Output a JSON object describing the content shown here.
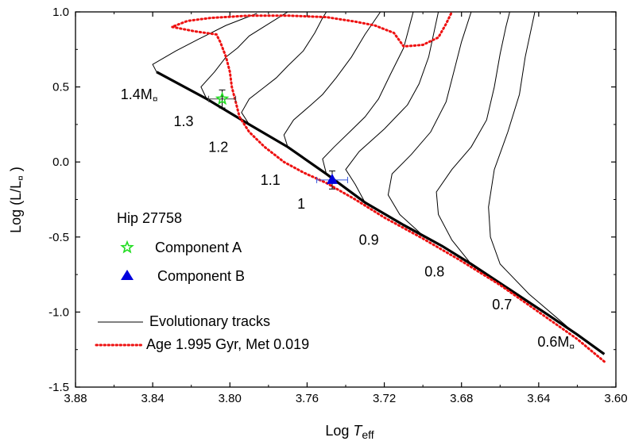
{
  "chart_data": {
    "type": "scatter",
    "xlabel": {
      "prefix": "Log ",
      "italic": "T",
      "sub": "eff"
    },
    "ylabel": {
      "prefix": "Log (L/L",
      "sub": "¤",
      "suffix": " )"
    },
    "xlim": [
      3.88,
      3.6
    ],
    "ylim": [
      -1.5,
      1.0
    ],
    "x_ticks": [
      "3.88",
      "3.84",
      "3.80",
      "3.76",
      "3.72",
      "3.68",
      "3.64",
      "3.60"
    ],
    "y_ticks": [
      "1.0",
      "0.5",
      "0.0",
      "-0.5",
      "-1.0",
      "-1.5"
    ],
    "legend": {
      "title": "Hip 27758",
      "entries": [
        "Component A",
        "Component B"
      ]
    },
    "legend_lines": [
      "Evolutionary tracks",
      "Age 1.995 Gyr, Met 0.019"
    ],
    "colors": {
      "component_a": "#22dd22",
      "component_b": "#0000dd",
      "isochrone": "#ee1111",
      "tracks": "#000000",
      "zams": "#000000",
      "errorbar_a": "#444444",
      "errorbar_b": "#3355dd"
    },
    "stars": [
      {
        "name": "Component A",
        "logT": 3.804,
        "logL": 0.42,
        "errT": 0.007,
        "errL": 0.06,
        "marker": "star"
      },
      {
        "name": "Component B",
        "logT": 3.747,
        "logL": -0.12,
        "errT": 0.008,
        "errL": 0.06,
        "marker": "triangle"
      }
    ],
    "mass_labels": [
      {
        "text": "1.4M",
        "sub": "¤",
        "logT": 3.847,
        "logL": 0.45
      },
      {
        "text": "1.3",
        "logT": 3.824,
        "logL": 0.27
      },
      {
        "text": "1.2",
        "logT": 3.806,
        "logL": 0.1
      },
      {
        "text": "1.1",
        "logT": 3.779,
        "logL": -0.12
      },
      {
        "text": "1",
        "logT": 3.763,
        "logL": -0.28
      },
      {
        "text": "0.9",
        "logT": 3.728,
        "logL": -0.52
      },
      {
        "text": "0.8",
        "logT": 3.694,
        "logL": -0.73
      },
      {
        "text": "0.7",
        "logT": 3.659,
        "logL": -0.95
      },
      {
        "text": "0.6M",
        "sub": "¤",
        "logT": 3.631,
        "logL": -1.2
      }
    ],
    "zams": [
      [
        3.838,
        0.6
      ],
      [
        3.812,
        0.42
      ],
      [
        3.79,
        0.25
      ],
      [
        3.77,
        0.1
      ],
      [
        3.75,
        -0.08
      ],
      [
        3.73,
        -0.27
      ],
      [
        3.71,
        -0.42
      ],
      [
        3.69,
        -0.56
      ],
      [
        3.675,
        -0.68
      ],
      [
        3.655,
        -0.85
      ],
      [
        3.635,
        -1.02
      ],
      [
        3.62,
        -1.15
      ],
      [
        3.606,
        -1.28
      ]
    ],
    "isochrone": [
      [
        3.606,
        -1.33
      ],
      [
        3.62,
        -1.18
      ],
      [
        3.64,
        -1.0
      ],
      [
        3.66,
        -0.82
      ],
      [
        3.68,
        -0.66
      ],
      [
        3.7,
        -0.51
      ],
      [
        3.72,
        -0.37
      ],
      [
        3.735,
        -0.25
      ],
      [
        3.75,
        -0.14
      ],
      [
        3.762,
        -0.07
      ],
      [
        3.772,
        0.0
      ],
      [
        3.782,
        0.1
      ],
      [
        3.79,
        0.2
      ],
      [
        3.795,
        0.3
      ],
      [
        3.797,
        0.4
      ],
      [
        3.799,
        0.5
      ],
      [
        3.8,
        0.6
      ],
      [
        3.802,
        0.7
      ],
      [
        3.805,
        0.8
      ],
      [
        3.807,
        0.85
      ],
      [
        3.818,
        0.87
      ],
      [
        3.83,
        0.9
      ],
      [
        3.822,
        0.94
      ],
      [
        3.81,
        0.96
      ],
      [
        3.79,
        0.975
      ],
      [
        3.77,
        0.975
      ],
      [
        3.75,
        0.965
      ],
      [
        3.735,
        0.935
      ],
      [
        3.725,
        0.91
      ],
      [
        3.715,
        0.86
      ],
      [
        3.71,
        0.77
      ],
      [
        3.7,
        0.78
      ],
      [
        3.692,
        0.83
      ],
      [
        3.688,
        0.92
      ],
      [
        3.685,
        1.0
      ]
    ],
    "tracks": [
      {
        "mass": "1.4",
        "points": [
          [
            3.838,
            0.6
          ],
          [
            3.84,
            0.65
          ],
          [
            3.828,
            0.74
          ],
          [
            3.816,
            0.82
          ],
          [
            3.802,
            0.91
          ],
          [
            3.786,
            0.99
          ]
        ]
      },
      {
        "mass": "1.3",
        "points": [
          [
            3.812,
            0.42
          ],
          [
            3.815,
            0.5
          ],
          [
            3.808,
            0.6
          ],
          [
            3.802,
            0.7
          ],
          [
            3.796,
            0.76
          ],
          [
            3.79,
            0.84
          ],
          [
            3.78,
            0.92
          ],
          [
            3.77,
            1.0
          ]
        ]
      },
      {
        "mass": "1.2",
        "points": [
          [
            3.79,
            0.25
          ],
          [
            3.794,
            0.33
          ],
          [
            3.79,
            0.42
          ],
          [
            3.782,
            0.5
          ],
          [
            3.776,
            0.56
          ],
          [
            3.77,
            0.64
          ],
          [
            3.762,
            0.74
          ],
          [
            3.756,
            0.86
          ],
          [
            3.752,
            0.96
          ],
          [
            3.75,
            1.0
          ]
        ]
      },
      {
        "mass": "1.1",
        "points": [
          [
            3.77,
            0.1
          ],
          [
            3.772,
            0.18
          ],
          [
            3.767,
            0.28
          ],
          [
            3.758,
            0.38
          ],
          [
            3.752,
            0.45
          ],
          [
            3.745,
            0.56
          ],
          [
            3.737,
            0.7
          ],
          [
            3.73,
            0.85
          ],
          [
            3.722,
            1.0
          ]
        ]
      },
      {
        "mass": "1.0",
        "points": [
          [
            3.75,
            -0.08
          ],
          [
            3.752,
            0.02
          ],
          [
            3.746,
            0.1
          ],
          [
            3.738,
            0.2
          ],
          [
            3.73,
            0.3
          ],
          [
            3.723,
            0.42
          ],
          [
            3.717,
            0.58
          ],
          [
            3.71,
            0.76
          ],
          [
            3.705,
            1.0
          ]
        ]
      },
      {
        "mass": "0.9",
        "points": [
          [
            3.73,
            -0.27
          ],
          [
            3.735,
            -0.15
          ],
          [
            3.74,
            -0.05
          ],
          [
            3.733,
            0.07
          ],
          [
            3.72,
            0.22
          ],
          [
            3.708,
            0.38
          ],
          [
            3.702,
            0.52
          ],
          [
            3.697,
            0.7
          ],
          [
            3.692,
            1.0
          ]
        ]
      },
      {
        "mass": "0.8",
        "points": [
          [
            3.7,
            -0.49
          ],
          [
            3.712,
            -0.35
          ],
          [
            3.718,
            -0.22
          ],
          [
            3.716,
            -0.08
          ],
          [
            3.706,
            0.05
          ],
          [
            3.696,
            0.2
          ],
          [
            3.688,
            0.4
          ],
          [
            3.684,
            0.6
          ],
          [
            3.68,
            0.8
          ],
          [
            3.675,
            1.0
          ]
        ]
      },
      {
        "mass": "0.7",
        "points": [
          [
            3.675,
            -0.68
          ],
          [
            3.685,
            -0.52
          ],
          [
            3.692,
            -0.35
          ],
          [
            3.693,
            -0.2
          ],
          [
            3.685,
            -0.05
          ],
          [
            3.675,
            0.1
          ],
          [
            3.667,
            0.28
          ],
          [
            3.663,
            0.5
          ],
          [
            3.66,
            0.72
          ],
          [
            3.657,
            0.9
          ],
          [
            3.655,
            1.0
          ]
        ]
      },
      {
        "mass": "0.6",
        "points": [
          [
            3.606,
            -1.28
          ],
          [
            3.625,
            -1.1
          ],
          [
            3.645,
            -0.88
          ],
          [
            3.66,
            -0.68
          ],
          [
            3.665,
            -0.5
          ],
          [
            3.666,
            -0.3
          ],
          [
            3.663,
            -0.05
          ],
          [
            3.656,
            0.2
          ],
          [
            3.65,
            0.45
          ],
          [
            3.647,
            0.7
          ],
          [
            3.642,
            1.0
          ]
        ]
      }
    ]
  }
}
